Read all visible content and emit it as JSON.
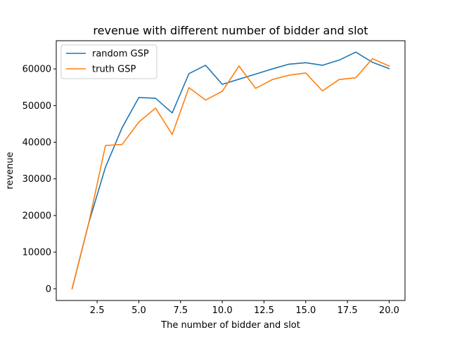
{
  "chart_data": {
    "type": "line",
    "title": "revenue with different number of bidder and slot",
    "xlabel": "The number of bidder and slot",
    "ylabel": "revenue",
    "xlim": [
      0.05,
      20.95
    ],
    "ylim": [
      -3200,
      67700
    ],
    "x_ticks": [
      2.5,
      5.0,
      7.5,
      10.0,
      12.5,
      15.0,
      17.5,
      20.0
    ],
    "x_tick_labels": [
      "2.5",
      "5.0",
      "7.5",
      "10.0",
      "12.5",
      "15.0",
      "17.5",
      "20.0"
    ],
    "y_ticks": [
      0,
      10000,
      20000,
      30000,
      40000,
      50000,
      60000
    ],
    "y_tick_labels": [
      "0",
      "10000",
      "20000",
      "30000",
      "40000",
      "50000",
      "60000"
    ],
    "grid": false,
    "legend_position": "top-left",
    "x": [
      1,
      2,
      3,
      4,
      5,
      6,
      7,
      8,
      9,
      10,
      11,
      12,
      13,
      14,
      15,
      16,
      17,
      18,
      19,
      20
    ],
    "series": [
      {
        "name": "random GSP",
        "color": "#1f77b4",
        "values": [
          0,
          18000,
          33200,
          44000,
          52200,
          52000,
          48000,
          58700,
          61000,
          55800,
          57200,
          58600,
          60000,
          61300,
          61700,
          61000,
          62400,
          64600,
          61800,
          60100
        ]
      },
      {
        "name": "truth GSP",
        "color": "#ff7f0e",
        "values": [
          0,
          18000,
          39100,
          39400,
          45500,
          49300,
          42100,
          54900,
          51500,
          53900,
          60800,
          54700,
          57100,
          58300,
          58900,
          54000,
          57100,
          57600,
          62800,
          60800
        ]
      }
    ]
  }
}
